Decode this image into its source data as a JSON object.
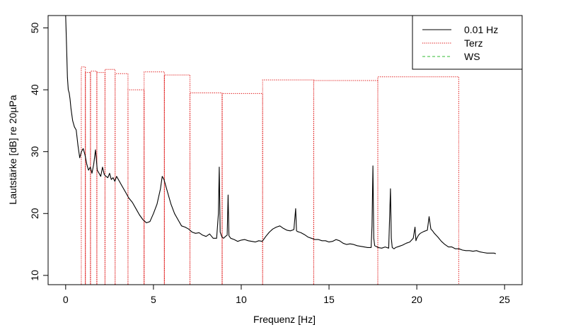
{
  "chart_data": {
    "type": "line",
    "xlabel": "Frequenz [Hz]",
    "ylabel": "Lautstärke [dB] re 20µPa",
    "xlim": [
      -1,
      26
    ],
    "ylim": [
      8.5,
      52
    ],
    "xticks": [
      0,
      5,
      10,
      15,
      20,
      25
    ],
    "yticks": [
      10,
      20,
      30,
      40,
      50
    ],
    "grid": false,
    "legend_position": "top-right",
    "legend": [
      {
        "label": "0.01 Hz",
        "color": "#000000",
        "style": "solid"
      },
      {
        "label": "Terz",
        "color": "#dd0000",
        "style": "dotted"
      },
      {
        "label": "WS",
        "color": "#33bb33",
        "style": "dashed"
      }
    ],
    "series": [
      {
        "name": "0.01 Hz",
        "color": "#000000",
        "style": "solid",
        "x": [
          0.0,
          0.05,
          0.1,
          0.15,
          0.2,
          0.25,
          0.3,
          0.4,
          0.5,
          0.6,
          0.7,
          0.8,
          0.9,
          1.0,
          1.1,
          1.2,
          1.3,
          1.4,
          1.5,
          1.6,
          1.7,
          1.8,
          1.9,
          2.0,
          2.1,
          2.2,
          2.3,
          2.4,
          2.5,
          2.6,
          2.7,
          2.8,
          2.9,
          3.0,
          3.2,
          3.4,
          3.6,
          3.8,
          4.0,
          4.2,
          4.4,
          4.6,
          4.8,
          5.0,
          5.2,
          5.4,
          5.5,
          5.6,
          5.8,
          6.0,
          6.2,
          6.4,
          6.6,
          6.8,
          7.0,
          7.2,
          7.4,
          7.6,
          7.8,
          8.0,
          8.2,
          8.4,
          8.6,
          8.7,
          8.75,
          8.8,
          8.9,
          9.0,
          9.1,
          9.2,
          9.25,
          9.3,
          9.4,
          9.6,
          9.8,
          10.0,
          10.2,
          10.4,
          10.6,
          10.8,
          11.0,
          11.2,
          11.4,
          11.6,
          11.8,
          12.0,
          12.2,
          12.4,
          12.6,
          12.8,
          13.0,
          13.1,
          13.15,
          13.2,
          13.3,
          13.4,
          13.6,
          13.8,
          14.0,
          14.2,
          14.4,
          14.6,
          14.8,
          15.0,
          15.2,
          15.4,
          15.6,
          15.8,
          16.0,
          16.2,
          16.4,
          16.6,
          16.8,
          17.0,
          17.2,
          17.4,
          17.45,
          17.5,
          17.55,
          17.6,
          17.8,
          18.0,
          18.2,
          18.4,
          18.5,
          18.55,
          18.6,
          18.7,
          18.8,
          19.0,
          19.2,
          19.4,
          19.6,
          19.8,
          19.9,
          19.95,
          20.0,
          20.1,
          20.2,
          20.4,
          20.6,
          20.7,
          20.8,
          20.9,
          21.0,
          21.2,
          21.4,
          21.6,
          21.8,
          22.0,
          22.2,
          22.4,
          22.6,
          22.8,
          23.0,
          23.2,
          23.4,
          23.6,
          23.8,
          24.0,
          24.2,
          24.4,
          24.5
        ],
        "y": [
          52,
          47,
          42,
          40,
          39.5,
          38.5,
          37,
          35,
          34,
          33.5,
          31,
          29,
          30,
          30.5,
          29.5,
          28,
          27,
          27.5,
          26.5,
          28,
          30.3,
          27,
          26.5,
          26,
          27.5,
          26.3,
          26,
          25.8,
          26.5,
          25.5,
          25.8,
          25.2,
          26,
          25.5,
          24.5,
          23.5,
          22.5,
          21.8,
          20.8,
          19.8,
          19,
          18.5,
          18.7,
          20,
          21.5,
          24,
          26,
          25.5,
          23.5,
          21.5,
          20,
          19,
          18,
          17.8,
          17.5,
          17,
          16.8,
          16.9,
          16.5,
          16.3,
          16.7,
          16,
          16,
          20,
          27.5,
          17,
          16.2,
          16,
          16.3,
          16.5,
          23,
          16.4,
          16,
          15.8,
          15.5,
          15.7,
          15.8,
          15.6,
          15.5,
          15.4,
          15.6,
          15.5,
          16.3,
          17,
          17.5,
          17.8,
          18,
          17.6,
          17.3,
          17.2,
          17.4,
          20.8,
          17.2,
          17.1,
          17,
          16.9,
          16.6,
          16.2,
          16,
          15.8,
          15.8,
          15.6,
          15.6,
          15.4,
          15.5,
          15.8,
          15.6,
          15.2,
          15,
          15.1,
          15,
          14.8,
          14.7,
          14.6,
          14.5,
          14.5,
          18,
          27.7,
          16,
          14.8,
          14.5,
          14.4,
          14.6,
          14.4,
          24,
          16,
          14.5,
          14.3,
          14.5,
          14.7,
          14.9,
          15.2,
          15.4,
          16,
          17.8,
          15.6,
          16,
          16.5,
          16.8,
          17.1,
          17.3,
          19.5,
          17.5,
          17.2,
          16.8,
          16.2,
          15.5,
          15,
          14.6,
          14.6,
          14.3,
          14.3,
          14.1,
          14,
          14,
          13.9,
          14,
          13.8,
          13.7,
          13.6,
          13.6,
          13.6,
          13.5
        ]
      }
    ],
    "bands": {
      "name": "Terz",
      "color": "#dd0000",
      "style": "dotted",
      "edges": [
        0.891,
        1.122,
        1.413,
        1.778,
        2.239,
        2.818,
        3.548,
        4.467,
        5.623,
        7.079,
        8.913,
        11.22,
        14.13,
        17.78,
        22.39
      ],
      "values": [
        43.7,
        42.8,
        43.0,
        42.8,
        43.3,
        42.6,
        40.0,
        42.9,
        42.4,
        39.5,
        39.4,
        41.6,
        41.5,
        42.1
      ]
    },
    "ws_series": {
      "name": "WS",
      "color": "#33bb33",
      "style": "dashed",
      "x": [],
      "y": []
    }
  }
}
